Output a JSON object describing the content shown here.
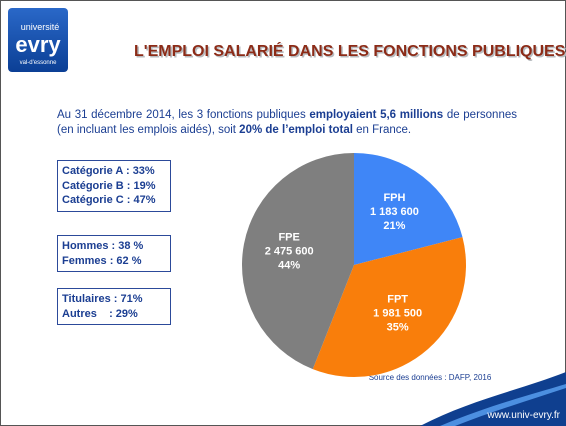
{
  "logo": {
    "top": "université",
    "name": "evry",
    "bottom": "val-d'essonne"
  },
  "title": "L'EMPLOI SALARIÉ DANS LES FONCTIONS PUBLIQUES",
  "intro": [
    "Au 31 décembre 2014, les 3 fonctions publiques ",
    "employaient 5,6 millions",
    " de personnes (en incluant les emplois aidés), soit ",
    "20% de l’emploi total",
    " en France."
  ],
  "boxes": [
    [
      "Catégorie A : 33%",
      "Catégorie B : 19%",
      "Catégorie C : 47%"
    ],
    [
      "Hommes : 38 %",
      "Femmes : 62 %"
    ],
    [
      "Titulaires : 71%",
      "Autres    : 29%"
    ]
  ],
  "chart_data": {
    "type": "pie",
    "categories": [
      "FPH",
      "FPT",
      "FPE"
    ],
    "values": [
      21,
      35,
      44
    ],
    "value_labels": [
      "21%",
      "35%",
      "44%"
    ],
    "counts": [
      {
        "value": 1183600,
        "label": "1 183 600"
      },
      {
        "value": 1981500,
        "label": "1 981 500"
      },
      {
        "value": 2475600,
        "label": "2 475 600"
      }
    ],
    "colors": [
      "#3f86f7",
      "#f97e0b",
      "#7f7f7f"
    ]
  },
  "source": "Source des données : DAFP, 2016",
  "url": "www.univ-evry.fr"
}
